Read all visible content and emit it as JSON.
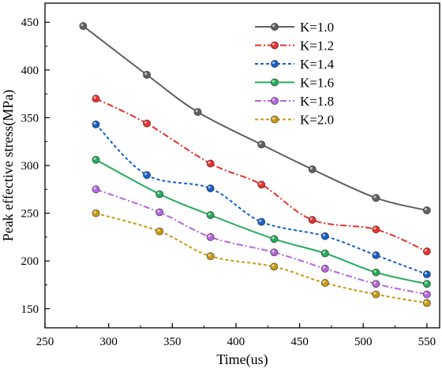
{
  "chart_data": {
    "type": "line",
    "xlabel": "Time(us)",
    "ylabel": "Peak effective stress(MPa)",
    "xlim": [
      250,
      560
    ],
    "ylim": [
      130,
      470
    ],
    "xticks": [
      250,
      300,
      350,
      400,
      450,
      500,
      550
    ],
    "yticks": [
      150,
      200,
      250,
      300,
      350,
      400,
      450
    ],
    "grid": false,
    "legend_position": "top-right",
    "series": [
      {
        "name": "K=1.0",
        "color": "#5f5f5f",
        "dash": "solid",
        "x": [
          280,
          330,
          370,
          420,
          460,
          510,
          550
        ],
        "y": [
          446,
          395,
          356,
          322,
          296,
          266,
          253
        ]
      },
      {
        "name": "K=1.2",
        "color": "#e8302c",
        "dash": "dashdot",
        "x": [
          290,
          330,
          380,
          420,
          460,
          510,
          550
        ],
        "y": [
          370,
          344,
          302,
          280,
          243,
          233,
          210
        ]
      },
      {
        "name": "K=1.4",
        "color": "#1560c8",
        "dash": "dash",
        "x": [
          290,
          330,
          380,
          420,
          470,
          510,
          550
        ],
        "y": [
          343,
          290,
          276,
          241,
          226,
          206,
          186
        ]
      },
      {
        "name": "K=1.6",
        "color": "#22ac59",
        "dash": "solid",
        "x": [
          290,
          340,
          380,
          430,
          470,
          510,
          550
        ],
        "y": [
          306,
          270,
          248,
          223,
          208,
          188,
          176
        ]
      },
      {
        "name": "K=1.8",
        "color": "#b565de",
        "dash": "dashdot",
        "x": [
          290,
          340,
          380,
          430,
          470,
          510,
          550
        ],
        "y": [
          275,
          251,
          225,
          209,
          192,
          176,
          165
        ]
      },
      {
        "name": "K=2.0",
        "color": "#c8980f",
        "dash": "dash",
        "x": [
          290,
          340,
          380,
          430,
          470,
          510,
          550
        ],
        "y": [
          250,
          231,
          205,
          194,
          177,
          165,
          156
        ]
      }
    ]
  }
}
